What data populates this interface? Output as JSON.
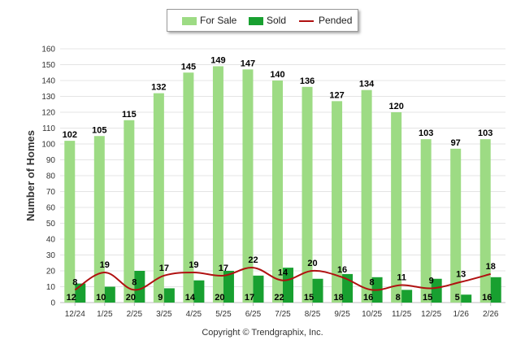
{
  "chart_data": {
    "type": "bar",
    "title": "",
    "xlabel": "",
    "ylabel": "Number of Homes",
    "ylim": [
      0,
      160
    ],
    "ytick_step": 10,
    "categories": [
      "12/24",
      "1/25",
      "2/25",
      "3/25",
      "4/25",
      "5/25",
      "6/25",
      "7/25",
      "8/25",
      "9/25",
      "10/25",
      "11/25",
      "12/25",
      "1/26",
      "2/26"
    ],
    "series": [
      {
        "name": "For Sale",
        "kind": "bar",
        "color": "#9ddb84",
        "values": [
          102,
          105,
          115,
          132,
          145,
          149,
          147,
          140,
          136,
          127,
          134,
          120,
          103,
          97,
          103
        ]
      },
      {
        "name": "Sold",
        "kind": "bar",
        "color": "#18a030",
        "values": [
          12,
          10,
          20,
          9,
          14,
          20,
          17,
          22,
          15,
          18,
          16,
          8,
          15,
          5,
          16
        ]
      },
      {
        "name": "Pended",
        "kind": "line",
        "color": "#b01010",
        "values": [
          8,
          19,
          8,
          17,
          19,
          17,
          22,
          14,
          20,
          16,
          8,
          11,
          9,
          13,
          18
        ]
      }
    ],
    "legend_position": "top-center",
    "copyright": "Copyright © Trendgraphix, Inc."
  }
}
